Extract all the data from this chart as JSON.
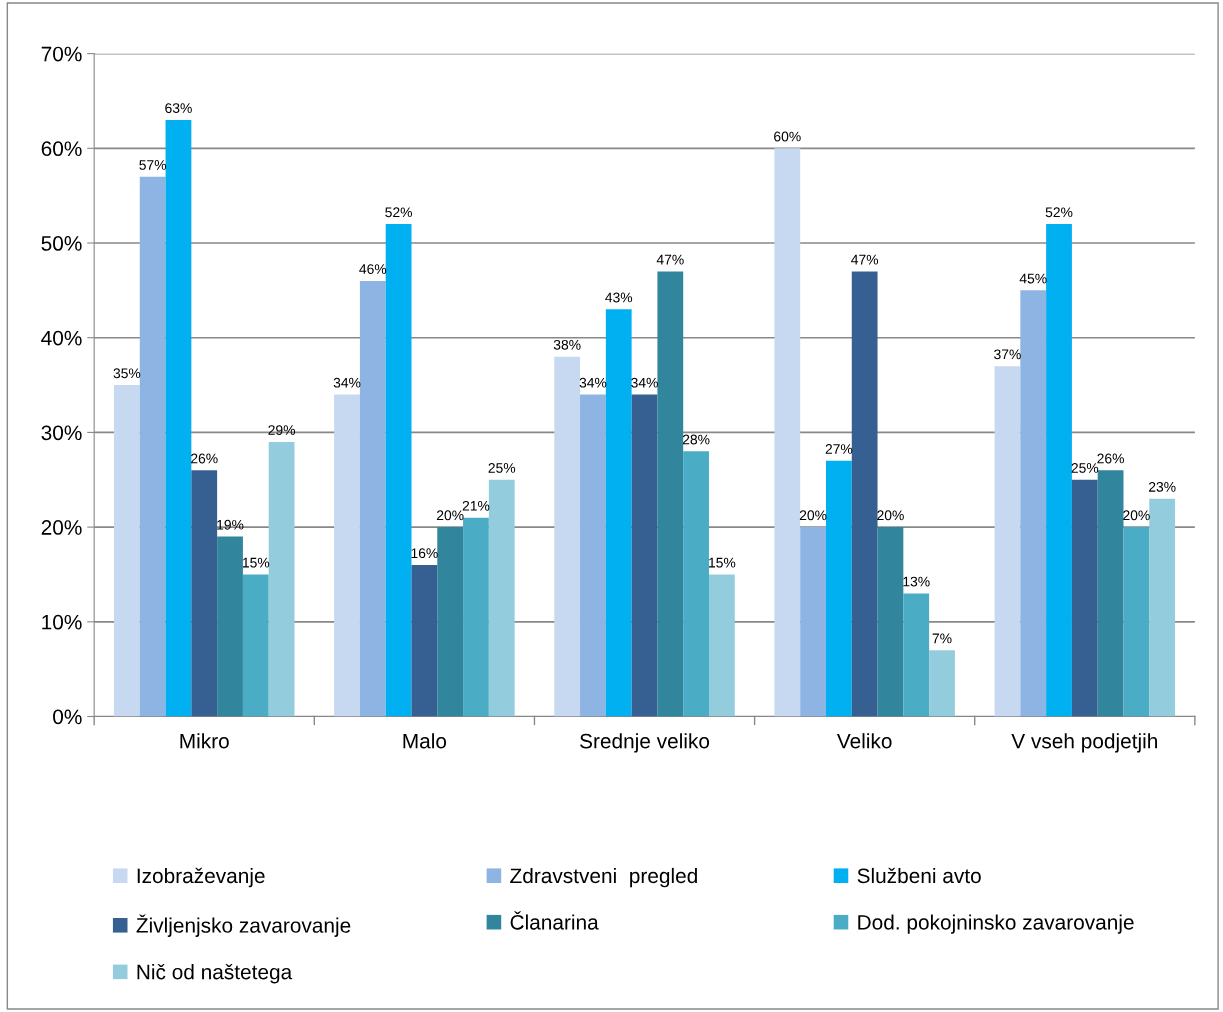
{
  "chart_data": {
    "type": "bar",
    "categories": [
      "Mikro",
      "Malo",
      "Srednje veliko",
      "Veliko",
      "V vseh podjetjih"
    ],
    "series": [
      {
        "name": "Izobraževanje",
        "color": "#c6d9f1",
        "values": [
          35,
          34,
          38,
          60,
          37
        ],
        "value_labels": [
          "35%",
          "34%",
          "38%",
          "60%",
          "37%"
        ]
      },
      {
        "name": "Zdravstveni  pregled",
        "color": "#8eb4e3",
        "values": [
          57,
          46,
          34,
          20,
          45
        ],
        "value_labels": [
          "57%",
          "46%",
          "34%",
          "20%",
          "45%"
        ]
      },
      {
        "name": "Službeni avto",
        "color": "#00b0f0",
        "values": [
          63,
          52,
          43,
          27,
          52
        ],
        "value_labels": [
          "63%",
          "52%",
          "43%",
          "27%",
          "52%"
        ]
      },
      {
        "name": "Življenjsko zavarovanje",
        "color": "#376092",
        "values": [
          26,
          16,
          34,
          47,
          25
        ],
        "value_labels": [
          "26%",
          "16%",
          "34%",
          "47%",
          "25%"
        ]
      },
      {
        "name": "Članarina",
        "color": "#31859c",
        "values": [
          19,
          20,
          47,
          20,
          26
        ],
        "value_labels": [
          "19%",
          "20%",
          "47%",
          "20%",
          "26%"
        ]
      },
      {
        "name": "Dod. pokojninsko zavarovanje",
        "color": "#4bacc6",
        "values": [
          15,
          21,
          28,
          13,
          20
        ],
        "value_labels": [
          "15%",
          "21%",
          "28%",
          "13%",
          "20%"
        ]
      },
      {
        "name": "Nič od naštetega",
        "color": "#93cddd",
        "values": [
          29,
          25,
          15,
          7,
          23
        ],
        "value_labels": [
          "29%",
          "25%",
          "15%",
          "7%",
          "23%"
        ]
      }
    ],
    "ylim": [
      0,
      70
    ],
    "yticks": [
      {
        "value": 0,
        "label": "0%"
      },
      {
        "value": 10,
        "label": "10%"
      },
      {
        "value": 20,
        "label": "20%"
      },
      {
        "value": 30,
        "label": "30%"
      },
      {
        "value": 40,
        "label": "40%"
      },
      {
        "value": 50,
        "label": "50%"
      },
      {
        "value": 60,
        "label": "60%"
      },
      {
        "value": 70,
        "label": "70%"
      }
    ],
    "grid": "y",
    "legend": "bottom"
  }
}
